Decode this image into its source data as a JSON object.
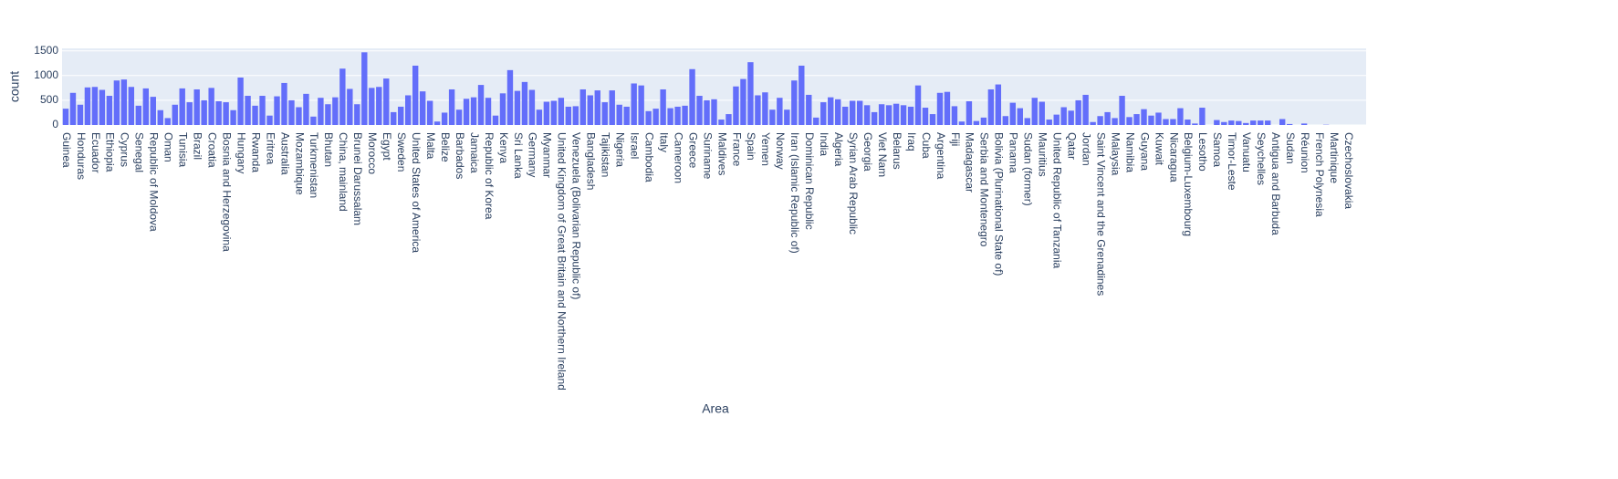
{
  "chart_data": {
    "type": "bar",
    "xlabel": "Area",
    "ylabel": "count",
    "color": "#636efa",
    "grid": true,
    "ylim": [
      0,
      1550
    ],
    "yticks": [
      0,
      500,
      1000,
      1500
    ],
    "categories": [
      "Guinea",
      null,
      "Honduras",
      null,
      "Ecuador",
      null,
      "Ethiopia",
      null,
      "Cyprus",
      null,
      "Senegal",
      null,
      "Republic of Moldova",
      null,
      "Oman",
      null,
      "Tunisia",
      null,
      "Brazil",
      null,
      "Croatia",
      null,
      "Bosnia and Herzegovina",
      null,
      "Hungary",
      null,
      "Rwanda",
      null,
      "Eritrea",
      null,
      "Australia",
      null,
      "Mozambique",
      null,
      "Turkmenistan",
      null,
      "Bhutan",
      null,
      "China, mainland",
      null,
      "Brunei Darussalam",
      null,
      "Morocco",
      null,
      "Egypt",
      null,
      "Sweden",
      null,
      "United States of America",
      null,
      "Malta",
      null,
      "Belize",
      null,
      "Barbados",
      null,
      "Jamaica",
      null,
      "Republic of Korea",
      null,
      "Kenya",
      null,
      "Sri Lanka",
      null,
      "Germany",
      null,
      "Myanmar",
      null,
      "United Kingdom of Great Britain and Northern Ireland",
      null,
      "Venezuela (Bolivarian Republic of)",
      null,
      "Bangladesh",
      null,
      "Tajikistan",
      null,
      "Nigeria",
      null,
      "Israel",
      null,
      "Cambodia",
      null,
      "Italy",
      null,
      "Cameroon",
      null,
      "Greece",
      null,
      "Suriname",
      null,
      "Maldives",
      null,
      "France",
      null,
      "Spain",
      null,
      "Yemen",
      null,
      "Norway",
      null,
      "Iran (Islamic Republic of)",
      null,
      "Dominican Republic",
      null,
      "India",
      null,
      "Algeria",
      null,
      "Syrian Arab Republic",
      null,
      "Georgia",
      null,
      "Viet Nam",
      null,
      "Belarus",
      null,
      "Iraq",
      null,
      "Cuba",
      null,
      "Argentina",
      null,
      "Fiji",
      null,
      "Madagascar",
      null,
      "Serbia and Montenegro",
      null,
      "Bolivia (Plurinational State of)",
      null,
      "Panama",
      null,
      "Sudan (former)",
      null,
      "Mauritius",
      null,
      "United Republic of Tanzania",
      null,
      "Qatar",
      null,
      "Jordan",
      null,
      "Saint Vincent and the Grenadines",
      null,
      "Malaysia",
      null,
      "Namibia",
      null,
      "Guyana",
      null,
      "Kuwait",
      null,
      "Nicaragua",
      null,
      "Belgium-Luxembourg",
      null,
      "Lesotho",
      null,
      "Samoa",
      null,
      "Timor-Leste",
      null,
      "Vanuatu",
      null,
      "Seychelles",
      null,
      "Antigua and Barbuda",
      null,
      "Sudan",
      null,
      "Réunion",
      null,
      "French Polynesia",
      null,
      "Martinique",
      null,
      "Czechoslovakia",
      null,
      null
    ],
    "values": [
      330,
      650,
      410,
      760,
      770,
      710,
      590,
      900,
      920,
      770,
      390,
      740,
      570,
      300,
      140,
      410,
      740,
      460,
      720,
      500,
      750,
      480,
      460,
      300,
      960,
      590,
      390,
      590,
      190,
      580,
      850,
      500,
      360,
      630,
      170,
      550,
      420,
      560,
      1140,
      730,
      420,
      1470,
      750,
      770,
      940,
      260,
      370,
      600,
      1200,
      680,
      490,
      70,
      250,
      720,
      310,
      530,
      560,
      810,
      550,
      190,
      640,
      1110,
      690,
      870,
      710,
      310,
      470,
      490,
      550,
      370,
      380,
      720,
      600,
      700,
      460,
      700,
      410,
      370,
      840,
      800,
      280,
      330,
      720,
      340,
      370,
      390,
      1130,
      590,
      500,
      520,
      110,
      220,
      780,
      930,
      1270,
      600,
      660,
      310,
      550,
      310,
      900,
      1200,
      610,
      150,
      460,
      560,
      520,
      370,
      490,
      490,
      400,
      260,
      420,
      400,
      430,
      400,
      370,
      800,
      350,
      220,
      650,
      670,
      380,
      70,
      480,
      80,
      150,
      720,
      820,
      180,
      450,
      340,
      140,
      550,
      470,
      110,
      210,
      360,
      290,
      500,
      610,
      60,
      180,
      260,
      140,
      590,
      160,
      220,
      320,
      190,
      250,
      120,
      120,
      340,
      110,
      30,
      350,
      0,
      100,
      60,
      90,
      80,
      40,
      90,
      90,
      90,
      0,
      120,
      20,
      0,
      30,
      0,
      0,
      5,
      0,
      0,
      0,
      0,
      0
    ]
  }
}
